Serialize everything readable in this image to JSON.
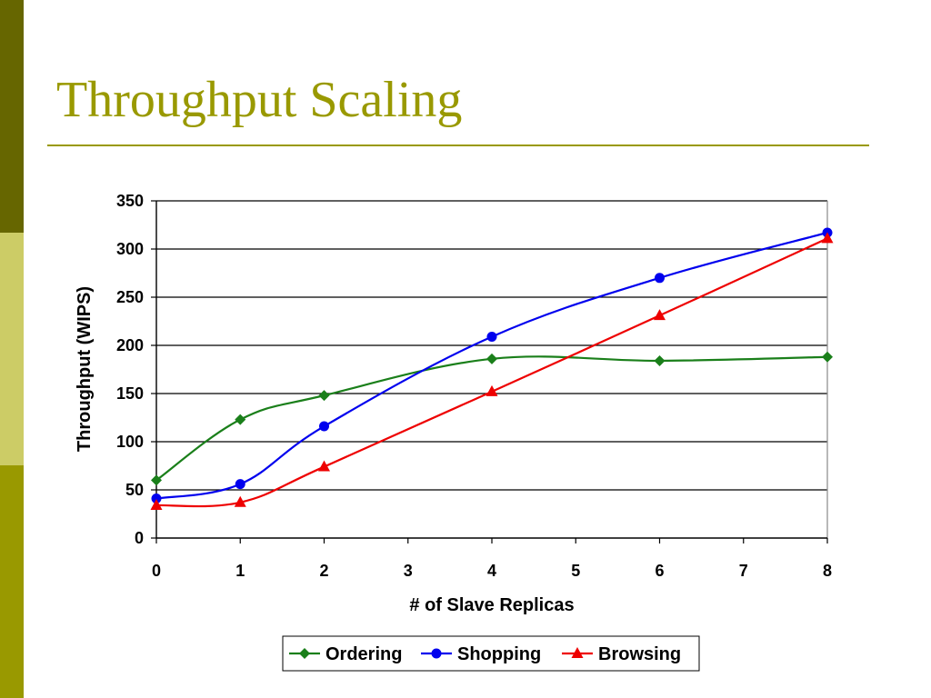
{
  "slide": {
    "title": "Throughput Scaling",
    "accent_color": "#999900",
    "sidebar_colors": [
      "#666600",
      "#cccc66",
      "#999900"
    ]
  },
  "chart_data": {
    "type": "line",
    "title": "",
    "xlabel": "# of Slave Replicas",
    "ylabel": "Throughput (WIPS)",
    "x_ticks": [
      0,
      1,
      2,
      3,
      4,
      5,
      6,
      7,
      8
    ],
    "y_ticks": [
      0,
      50,
      100,
      150,
      200,
      250,
      300,
      350
    ],
    "xlim": [
      0,
      8
    ],
    "ylim": [
      0,
      350
    ],
    "grid": "horizontal",
    "smooth": true,
    "legend_position": "bottom",
    "series": [
      {
        "name": "Ordering",
        "color": "#1a7f1a",
        "marker": "diamond",
        "x": [
          0,
          1,
          2,
          4,
          6,
          8
        ],
        "y": [
          60,
          123,
          148,
          186,
          184,
          188
        ]
      },
      {
        "name": "Shopping",
        "color": "#0000ee",
        "marker": "circle",
        "x": [
          0,
          1,
          2,
          4,
          6,
          8
        ],
        "y": [
          41,
          56,
          116,
          209,
          270,
          317
        ]
      },
      {
        "name": "Browsing",
        "color": "#ee0000",
        "marker": "triangle",
        "x": [
          0,
          1,
          2,
          4,
          6,
          8
        ],
        "y": [
          34,
          37,
          74,
          152,
          231,
          311
        ]
      }
    ]
  }
}
